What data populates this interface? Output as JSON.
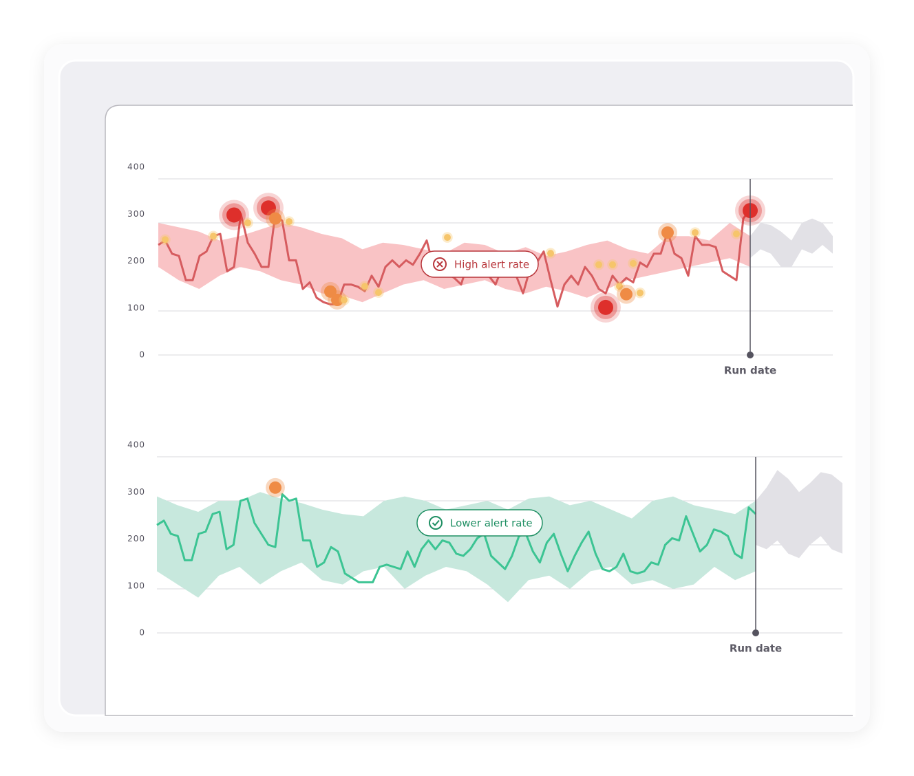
{
  "chart_data": [
    {
      "type": "line",
      "color": "#d65c5f",
      "values": [
        250,
        260,
        230,
        225,
        170,
        170,
        225,
        235,
        270,
        275,
        190,
        200,
        320,
        255,
        230,
        200,
        200,
        320,
        305,
        215,
        215,
        150,
        165,
        130,
        120,
        115,
        115,
        160,
        160,
        155,
        145,
        180,
        155,
        200,
        215,
        200,
        215,
        205,
        230,
        260,
        200,
        195,
        185,
        175,
        160,
        210,
        215,
        215,
        180,
        160,
        200,
        205,
        180,
        140,
        195,
        210,
        235,
        170,
        110,
        160,
        180,
        160,
        200,
        180,
        150,
        140,
        180,
        160,
        175,
        165,
        210,
        200,
        230,
        230,
        280,
        230,
        220,
        180,
        270,
        250,
        250,
        245,
        190,
        180,
        170,
        310,
        330
      ],
      "band": {
        "color": "#f9c3c5",
        "upper": [
          300,
          290,
          280,
          260,
          270,
          285,
          300,
          290,
          275,
          265,
          240,
          255,
          250,
          240,
          230,
          255,
          250,
          230,
          245,
          225,
          235,
          250,
          260,
          240,
          230,
          270,
          270,
          260,
          300,
          270
        ],
        "lower": [
          200,
          170,
          150,
          180,
          200,
          190,
          170,
          160,
          140,
          135,
          120,
          140,
          160,
          170,
          150,
          160,
          170,
          150,
          140,
          155,
          145,
          130,
          150,
          170,
          180,
          190,
          200,
          210,
          220,
          200
        ]
      },
      "forecast": {
        "color": "#e2e1e6",
        "upper": [
          270,
          300,
          295,
          280,
          260,
          300,
          310,
          300,
          270
        ],
        "lower": [
          220,
          240,
          230,
          200,
          200,
          240,
          230,
          250,
          230
        ]
      },
      "anomalies": {
        "x": [
          1,
          8,
          11,
          13,
          16,
          17,
          19,
          25,
          26,
          27,
          30,
          32,
          42,
          57,
          64,
          65,
          66,
          67,
          68,
          69,
          70,
          74,
          78,
          84,
          86
        ],
        "values": [
          262,
          270,
          318,
          300,
          334,
          310,
          303,
          144,
          125,
          125,
          156,
          142,
          267,
          231,
          205,
          108,
          205,
          156,
          138,
          208,
          141,
          278,
          278,
          275,
          328
        ],
        "severity": [
          1,
          1,
          3,
          1,
          3,
          2,
          1,
          2,
          2,
          1,
          1,
          1,
          1,
          1,
          1,
          3,
          1,
          1,
          2,
          1,
          1,
          2,
          1,
          1,
          3
        ],
        "colors": [
          "#f6c56b",
          "#ef8b45",
          "#de2f2b"
        ]
      },
      "ylim": [
        0,
        400
      ],
      "yticks": [
        0,
        100,
        200,
        300,
        400
      ],
      "grid": true,
      "annotation": "High alert rate",
      "annotation_color": "#b8363b",
      "run_date_label": "Run date"
    },
    {
      "type": "line",
      "color": "#3cc493",
      "values": [
        245,
        255,
        225,
        220,
        165,
        165,
        225,
        230,
        270,
        275,
        190,
        200,
        300,
        305,
        250,
        225,
        200,
        195,
        315,
        300,
        305,
        210,
        210,
        150,
        160,
        195,
        185,
        135,
        125,
        115,
        115,
        115,
        150,
        155,
        150,
        145,
        185,
        150,
        190,
        210,
        190,
        210,
        205,
        180,
        175,
        190,
        215,
        225,
        175,
        160,
        145,
        175,
        220,
        225,
        185,
        160,
        205,
        225,
        180,
        140,
        175,
        205,
        230,
        180,
        145,
        140,
        150,
        180,
        140,
        135,
        140,
        160,
        155,
        200,
        215,
        210,
        265,
        225,
        185,
        200,
        235,
        230,
        220,
        180,
        170,
        285,
        270
      ],
      "band": {
        "color": "#c7e8dd",
        "upper": [
          310,
          290,
          275,
          300,
          300,
          320,
          305,
          295,
          280,
          270,
          265,
          300,
          310,
          300,
          280,
          290,
          300,
          280,
          305,
          310,
          290,
          300,
          280,
          260,
          300,
          310,
          290,
          280,
          270,
          300
        ],
        "lower": [
          140,
          110,
          80,
          130,
          150,
          110,
          140,
          160,
          120,
          110,
          140,
          150,
          100,
          130,
          150,
          140,
          110,
          70,
          120,
          130,
          100,
          140,
          150,
          110,
          120,
          100,
          110,
          150,
          120,
          140
        ]
      },
      "forecast": {
        "color": "#e2e1e6",
        "upper": [
          300,
          330,
          370,
          350,
          320,
          340,
          365,
          360,
          340
        ],
        "lower": [
          200,
          190,
          210,
          180,
          170,
          200,
          220,
          190,
          180
        ]
      },
      "anomalies": {
        "x": [
          17
        ],
        "values": [
          330
        ],
        "severity": [
          2
        ],
        "colors": [
          "#f6c56b",
          "#ef8b45",
          "#de2f2b"
        ]
      },
      "ylim": [
        0,
        400
      ],
      "yticks": [
        0,
        100,
        200,
        300,
        400
      ],
      "grid": true,
      "annotation": "Lower alert rate",
      "annotation_color": "#1f8f63",
      "run_date_label": "Run date"
    }
  ]
}
